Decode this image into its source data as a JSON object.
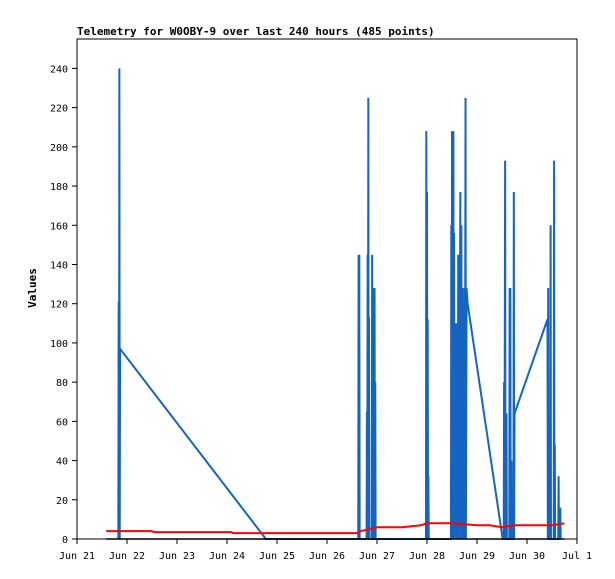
{
  "chart_data": {
    "type": "line",
    "title": "Telemetry for W0OBY-9 over last 240 hours (485 points)",
    "xlabel": "",
    "ylabel": "Values",
    "x_range": [
      "2020-06-21T00:00",
      "2020-07-01T00:00"
    ],
    "ylim": [
      0,
      255
    ],
    "y_ticks": [
      0,
      20,
      40,
      60,
      80,
      100,
      120,
      140,
      160,
      180,
      200,
      220,
      240
    ],
    "x_ticks": [
      {
        "t": "2020-06-21T00:00",
        "label": "Jun 21"
      },
      {
        "t": "2020-06-22T00:00",
        "label": "Jun 22"
      },
      {
        "t": "2020-06-23T00:00",
        "label": "Jun 23"
      },
      {
        "t": "2020-06-24T00:00",
        "label": "Jun 24"
      },
      {
        "t": "2020-06-25T00:00",
        "label": "Jun 25"
      },
      {
        "t": "2020-06-26T00:00",
        "label": "Jun 26"
      },
      {
        "t": "2020-06-27T00:00",
        "label": "Jun 27"
      },
      {
        "t": "2020-06-28T00:00",
        "label": "Jun 28"
      },
      {
        "t": "2020-06-29T00:00",
        "label": "Jun 29"
      },
      {
        "t": "2020-06-30T00:00",
        "label": "Jun 30"
      },
      {
        "t": "2020-07-01T00:00",
        "label": "Jul 1"
      }
    ],
    "grid": false,
    "legend": "none",
    "series": [
      {
        "color": "#1565c0",
        "points": [
          [
            "2020-06-21T19:50",
            0
          ],
          [
            "2020-06-21T20:00",
            121
          ],
          [
            "2020-06-21T20:10",
            0
          ],
          [
            "2020-06-21T20:20",
            240
          ],
          [
            "2020-06-21T20:30",
            0
          ],
          [
            "2020-06-21T20:40",
            97
          ],
          [
            "2020-06-24T18:40",
            0
          ],
          [
            "2020-06-26T15:00",
            0
          ],
          [
            "2020-06-26T15:10",
            145
          ],
          [
            "2020-06-26T15:20",
            0
          ],
          [
            "2020-06-26T15:30",
            145
          ],
          [
            "2020-06-26T15:40",
            0
          ],
          [
            "2020-06-26T19:00",
            0
          ],
          [
            "2020-06-26T19:10",
            65
          ],
          [
            "2020-06-26T19:20",
            0
          ],
          [
            "2020-06-26T19:30",
            145
          ],
          [
            "2020-06-26T19:40",
            0
          ],
          [
            "2020-06-26T19:50",
            225
          ],
          [
            "2020-06-26T20:00",
            0
          ],
          [
            "2020-06-26T20:10",
            113
          ],
          [
            "2020-06-26T20:20",
            0
          ],
          [
            "2020-06-26T21:30",
            0
          ],
          [
            "2020-06-26T21:40",
            145
          ],
          [
            "2020-06-26T21:50",
            0
          ],
          [
            "2020-06-26T22:20",
            0
          ],
          [
            "2020-06-26T22:30",
            128
          ],
          [
            "2020-06-26T22:40",
            0
          ],
          [
            "2020-06-26T22:50",
            128
          ],
          [
            "2020-06-26T23:00",
            0
          ],
          [
            "2020-06-26T23:10",
            80
          ],
          [
            "2020-06-26T23:20",
            0
          ],
          [
            "2020-06-27T23:30",
            0
          ],
          [
            "2020-06-27T23:40",
            208
          ],
          [
            "2020-06-27T23:50",
            0
          ],
          [
            "2020-06-28T00:00",
            177
          ],
          [
            "2020-06-28T00:10",
            0
          ],
          [
            "2020-06-28T00:20",
            112
          ],
          [
            "2020-06-28T00:30",
            0
          ],
          [
            "2020-06-28T00:40",
            32
          ],
          [
            "2020-06-28T00:50",
            0
          ],
          [
            "2020-06-28T11:30",
            0
          ],
          [
            "2020-06-28T11:40",
            160
          ],
          [
            "2020-06-28T11:50",
            0
          ],
          [
            "2020-06-28T12:00",
            208
          ],
          [
            "2020-06-28T12:10",
            0
          ],
          [
            "2020-06-28T12:20",
            208
          ],
          [
            "2020-06-28T12:30",
            0
          ],
          [
            "2020-06-28T12:40",
            208
          ],
          [
            "2020-06-28T12:50",
            0
          ],
          [
            "2020-06-28T13:00",
            156
          ],
          [
            "2020-06-28T13:10",
            0
          ],
          [
            "2020-06-28T13:40",
            60
          ],
          [
            "2020-06-28T14:00",
            110
          ],
          [
            "2020-06-28T14:10",
            0
          ],
          [
            "2020-06-28T14:30",
            85
          ],
          [
            "2020-06-28T14:40",
            0
          ],
          [
            "2020-06-28T15:00",
            145
          ],
          [
            "2020-06-28T15:10",
            0
          ],
          [
            "2020-06-28T15:30",
            128
          ],
          [
            "2020-06-28T15:40",
            72
          ],
          [
            "2020-06-28T16:00",
            177
          ],
          [
            "2020-06-28T16:10",
            0
          ],
          [
            "2020-06-28T16:30",
            160
          ],
          [
            "2020-06-28T16:40",
            0
          ],
          [
            "2020-06-28T17:00",
            128
          ],
          [
            "2020-06-28T17:10",
            0
          ],
          [
            "2020-06-28T17:30",
            48
          ],
          [
            "2020-06-28T17:40",
            0
          ],
          [
            "2020-06-28T18:00",
            128
          ],
          [
            "2020-06-28T18:10",
            0
          ],
          [
            "2020-06-28T18:30",
            225
          ],
          [
            "2020-06-28T18:40",
            0
          ],
          [
            "2020-06-28T19:00",
            128
          ],
          [
            "2020-06-28T19:30",
            120
          ],
          [
            "2020-06-29T12:20",
            0
          ],
          [
            "2020-06-29T12:50",
            0
          ],
          [
            "2020-06-29T13:00",
            80
          ],
          [
            "2020-06-29T13:10",
            0
          ],
          [
            "2020-06-29T13:30",
            193
          ],
          [
            "2020-06-29T13:40",
            0
          ],
          [
            "2020-06-29T14:10",
            64
          ],
          [
            "2020-06-29T14:20",
            0
          ],
          [
            "2020-06-29T15:30",
            0
          ],
          [
            "2020-06-29T15:40",
            128
          ],
          [
            "2020-06-29T15:50",
            0
          ],
          [
            "2020-06-29T16:00",
            128
          ],
          [
            "2020-06-29T16:10",
            0
          ],
          [
            "2020-06-29T16:30",
            40
          ],
          [
            "2020-06-29T16:40",
            0
          ],
          [
            "2020-06-29T17:30",
            0
          ],
          [
            "2020-06-29T17:40",
            177
          ],
          [
            "2020-06-29T17:50",
            0
          ],
          [
            "2020-06-29T18:00",
            64
          ],
          [
            "2020-06-30T09:50",
            112
          ],
          [
            "2020-06-30T10:00",
            0
          ],
          [
            "2020-06-30T10:10",
            128
          ],
          [
            "2020-06-30T10:20",
            0
          ],
          [
            "2020-06-30T11:10",
            0
          ],
          [
            "2020-06-30T11:20",
            160
          ],
          [
            "2020-06-30T11:30",
            0
          ],
          [
            "2020-06-30T12:50",
            0
          ],
          [
            "2020-06-30T13:00",
            193
          ],
          [
            "2020-06-30T13:10",
            0
          ],
          [
            "2020-06-30T13:20",
            48
          ],
          [
            "2020-06-30T13:30",
            0
          ],
          [
            "2020-06-30T15:00",
            0
          ],
          [
            "2020-06-30T15:10",
            32
          ],
          [
            "2020-06-30T15:20",
            0
          ],
          [
            "2020-06-30T16:00",
            16
          ],
          [
            "2020-06-30T16:10",
            0
          ]
        ]
      },
      {
        "color": "#ff0000",
        "points": [
          [
            "2020-06-21T14:00",
            4
          ],
          [
            "2020-06-22T12:00",
            4
          ],
          [
            "2020-06-22T13:00",
            3.5
          ],
          [
            "2020-06-24T02:00",
            3.5
          ],
          [
            "2020-06-24T03:00",
            3
          ],
          [
            "2020-06-26T15:00",
            3
          ],
          [
            "2020-06-26T16:00",
            4
          ],
          [
            "2020-06-26T20:00",
            5
          ],
          [
            "2020-06-27T00:00",
            6
          ],
          [
            "2020-06-27T12:00",
            6
          ],
          [
            "2020-06-27T21:00",
            7
          ],
          [
            "2020-06-28T00:00",
            8
          ],
          [
            "2020-06-28T12:00",
            8
          ],
          [
            "2020-06-29T00:00",
            7
          ],
          [
            "2020-06-29T06:00",
            7
          ],
          [
            "2020-06-29T12:00",
            6
          ],
          [
            "2020-06-29T18:00",
            7
          ],
          [
            "2020-06-30T12:00",
            7
          ],
          [
            "2020-06-30T18:00",
            8
          ]
        ]
      },
      {
        "color": "#000000",
        "points": [
          [
            "2020-06-21T14:00",
            0
          ],
          [
            "2020-06-30T18:00",
            0
          ]
        ]
      }
    ]
  }
}
